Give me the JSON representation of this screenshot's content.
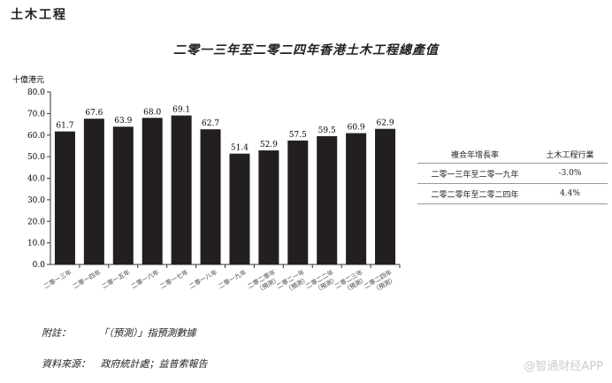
{
  "section_title": "土木工程",
  "chart_data": {
    "type": "bar",
    "title": "二零一三年至二零二四年香港土木工程總產值",
    "ylabel": "十億港元",
    "ylim": [
      0,
      80
    ],
    "yticks": [
      "0.0",
      "10.0",
      "20.0",
      "30.0",
      "40.0",
      "50.0",
      "60.0",
      "70.0",
      "80.0"
    ],
    "categories": [
      "二零一三年",
      "二零一四年",
      "二零一五年",
      "二零一六年",
      "二零一七年",
      "二零一八年",
      "二零一九年",
      "二零二零年（預測）",
      "二零二一年（預測）",
      "二零二二年（預測）",
      "二零二三年（預測）",
      "二零二四年（預測）"
    ],
    "values": [
      61.7,
      67.6,
      63.9,
      68.0,
      69.1,
      62.7,
      51.4,
      52.9,
      57.5,
      59.5,
      60.9,
      62.9
    ],
    "data_labels": [
      "61.7",
      "67.6",
      "63.9",
      "68.0",
      "69.1",
      "62.7",
      "51.4",
      "52.9",
      "57.5",
      "59.5",
      "60.9",
      "62.9"
    ],
    "bar_color": "#231f20",
    "grid": false
  },
  "table": {
    "headers": [
      "複合年增長率",
      "土木工程行業"
    ],
    "rows": [
      [
        "二零一三年至二零一九年",
        "-3.0%"
      ],
      [
        "二零二零年至二零二四年",
        "4.4%"
      ]
    ]
  },
  "notes": {
    "note_label": "附註：",
    "note_text": "「（預測）」指預測數據",
    "source_label": "資料來源：",
    "source_text": "政府統計處；益普索報告"
  },
  "watermark": "@智通财经APP"
}
